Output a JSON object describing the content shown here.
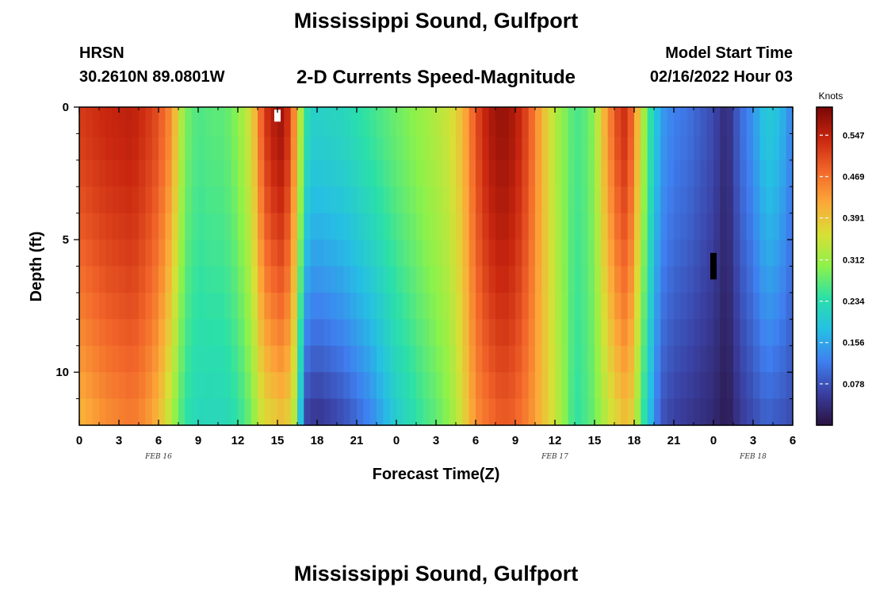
{
  "header": {
    "title": "Mississippi Sound, Gulfport",
    "station": "HRSN",
    "coordinates": "30.2610N  89.0801W",
    "subtitle": "2-D Currents Speed-Magnitude",
    "model_start_label": "Model Start Time",
    "model_start_value": "02/16/2022 Hour 03"
  },
  "footer": {
    "title": "Mississippi Sound, Gulfport"
  },
  "colors": {
    "background": "#ffffff",
    "axis": "#000000",
    "colormap": [
      "#2a123f",
      "#3a3fa0",
      "#3f7ff0",
      "#26bfe4",
      "#2be0a8",
      "#8cf24a",
      "#d8df36",
      "#fca838",
      "#f2662a",
      "#c8260f",
      "#7a0605"
    ]
  },
  "chart_data": {
    "type": "heatmap",
    "xlabel": "Forecast Time(Z)",
    "ylabel": "Depth (ft)",
    "colorbar_label": "Knots",
    "colorbar_ticks": [
      "0.078",
      "0.156",
      "0.234",
      "0.312",
      "0.391",
      "0.469",
      "0.547"
    ],
    "colorbar_range": [
      0,
      0.6
    ],
    "x_range_hours": [
      0,
      54
    ],
    "x_tick_labels": [
      "0",
      "3",
      "6",
      "9",
      "12",
      "15",
      "18",
      "21",
      "0",
      "3",
      "6",
      "9",
      "12",
      "15",
      "18",
      "21",
      "0",
      "3",
      "6"
    ],
    "date_labels": [
      {
        "text": "FEB 16",
        "hour": 6
      },
      {
        "text": "FEB 17",
        "hour": 36
      },
      {
        "text": "FEB 18",
        "hour": 51
      }
    ],
    "y_range_ft": [
      0,
      12
    ],
    "y_tick_labels": [
      "0",
      "5",
      "10"
    ],
    "grid": false,
    "depth_levels_ft": [
      0.25,
      0.75,
      1.5,
      2.5,
      3.5,
      4.5,
      5.5,
      6.5,
      7.5,
      8.5,
      9.5,
      10.5,
      11.5
    ],
    "profile_hours": [
      0,
      2,
      4,
      5,
      6,
      7,
      7.5,
      8,
      9,
      10,
      11,
      12,
      13,
      13.5,
      14,
      15,
      15.5,
      16,
      16.5,
      17,
      17.5,
      18,
      20,
      22,
      24,
      26,
      27,
      28,
      29,
      30,
      31,
      32,
      33,
      34,
      35,
      36,
      37,
      37.5,
      38,
      39,
      39.5,
      40,
      41,
      41.5,
      42,
      43,
      44,
      45,
      46,
      47,
      48,
      49,
      50,
      51,
      52,
      53,
      54
    ],
    "surface_speed_knots": [
      0.52,
      0.54,
      0.55,
      0.53,
      0.5,
      0.44,
      0.36,
      0.29,
      0.26,
      0.27,
      0.27,
      0.3,
      0.36,
      0.44,
      0.52,
      0.57,
      0.57,
      0.5,
      0.4,
      0.26,
      0.21,
      0.21,
      0.22,
      0.25,
      0.28,
      0.31,
      0.33,
      0.35,
      0.4,
      0.5,
      0.56,
      0.58,
      0.56,
      0.5,
      0.41,
      0.33,
      0.28,
      0.26,
      0.26,
      0.3,
      0.38,
      0.44,
      0.53,
      0.53,
      0.45,
      0.27,
      0.15,
      0.12,
      0.11,
      0.09,
      0.07,
      0.03,
      0.1,
      0.14,
      0.2,
      0.18,
      0.12
    ],
    "bottom_speed_knots": [
      0.4,
      0.44,
      0.46,
      0.44,
      0.4,
      0.32,
      0.28,
      0.24,
      0.22,
      0.22,
      0.22,
      0.24,
      0.28,
      0.33,
      0.36,
      0.38,
      0.39,
      0.36,
      0.3,
      0.06,
      0.05,
      0.04,
      0.07,
      0.12,
      0.2,
      0.25,
      0.27,
      0.3,
      0.36,
      0.44,
      0.47,
      0.49,
      0.48,
      0.45,
      0.4,
      0.35,
      0.28,
      0.24,
      0.25,
      0.28,
      0.31,
      0.34,
      0.38,
      0.4,
      0.35,
      0.2,
      0.08,
      0.06,
      0.05,
      0.04,
      0.03,
      0.01,
      0.05,
      0.07,
      0.09,
      0.08,
      0.07
    ],
    "missing_marks": [
      {
        "hour": 15,
        "depth_range_ft": [
          0.1,
          0.55
        ],
        "color": "#ffffff"
      },
      {
        "hour": 48,
        "depth_range_ft": [
          5.5,
          6.5
        ],
        "color": "#000000"
      }
    ]
  }
}
